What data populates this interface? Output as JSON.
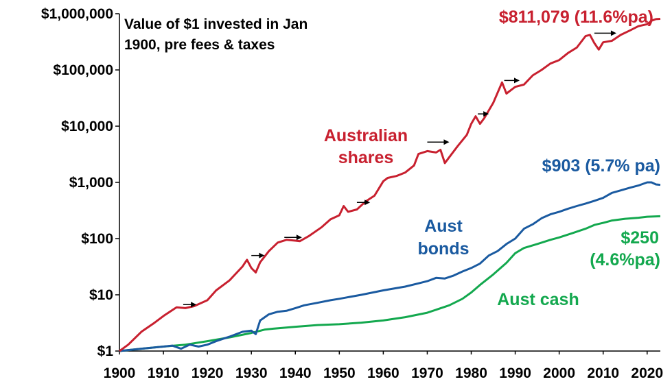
{
  "chart_data": {
    "type": "line",
    "title_lines": [
      "Value of $1 invested in Jan",
      "1900, pre fees & taxes"
    ],
    "y_scale": "log",
    "ylim": [
      1,
      1000000
    ],
    "xlim": [
      1900,
      2023
    ],
    "x_ticks": [
      1900,
      1910,
      1920,
      1930,
      1940,
      1950,
      1960,
      1970,
      1980,
      1990,
      2000,
      2010,
      2020
    ],
    "x_tick_labels": [
      "1900",
      "1910",
      "1920",
      "1930",
      "1940",
      "1950",
      "1960",
      "1970",
      "1980",
      "1990",
      "2000",
      "2010",
      "2020"
    ],
    "y_ticks": [
      1,
      10,
      100,
      1000,
      10000,
      100000,
      1000000
    ],
    "y_tick_labels": [
      "$1",
      "$10",
      "$100",
      "$1,000",
      "$10,000",
      "$100,000",
      "$1,000,000"
    ],
    "grid": false,
    "series": [
      {
        "name_lines": [
          "Australian",
          "shares"
        ],
        "color": "#c8202f",
        "end_label_lines": [
          "$811,079 (11.6%pa)"
        ],
        "points": [
          [
            1900,
            1
          ],
          [
            1902,
            1.3
          ],
          [
            1905,
            2.2
          ],
          [
            1908,
            3.2
          ],
          [
            1910,
            4.2
          ],
          [
            1913,
            6
          ],
          [
            1915,
            5.8
          ],
          [
            1917,
            6.3
          ],
          [
            1920,
            8
          ],
          [
            1922,
            12
          ],
          [
            1925,
            18
          ],
          [
            1928,
            32
          ],
          [
            1929,
            42
          ],
          [
            1930,
            30
          ],
          [
            1931,
            25
          ],
          [
            1932,
            38
          ],
          [
            1934,
            60
          ],
          [
            1936,
            85
          ],
          [
            1938,
            95
          ],
          [
            1940,
            92
          ],
          [
            1941,
            90
          ],
          [
            1943,
            110
          ],
          [
            1946,
            160
          ],
          [
            1948,
            220
          ],
          [
            1950,
            260
          ],
          [
            1951,
            380
          ],
          [
            1952,
            300
          ],
          [
            1954,
            330
          ],
          [
            1956,
            460
          ],
          [
            1958,
            580
          ],
          [
            1960,
            1050
          ],
          [
            1961,
            1200
          ],
          [
            1963,
            1300
          ],
          [
            1965,
            1500
          ],
          [
            1967,
            2000
          ],
          [
            1968,
            3200
          ],
          [
            1970,
            3600
          ],
          [
            1972,
            3400
          ],
          [
            1973,
            3800
          ],
          [
            1974,
            2200
          ],
          [
            1975,
            2800
          ],
          [
            1977,
            4500
          ],
          [
            1979,
            7000
          ],
          [
            1980,
            11000
          ],
          [
            1981,
            15000
          ],
          [
            1982,
            11000
          ],
          [
            1983,
            14000
          ],
          [
            1985,
            26000
          ],
          [
            1987,
            60000
          ],
          [
            1988,
            38000
          ],
          [
            1990,
            50000
          ],
          [
            1992,
            55000
          ],
          [
            1994,
            80000
          ],
          [
            1996,
            100000
          ],
          [
            1998,
            130000
          ],
          [
            2000,
            150000
          ],
          [
            2002,
            200000
          ],
          [
            2004,
            250000
          ],
          [
            2006,
            400000
          ],
          [
            2007,
            420000
          ],
          [
            2008,
            300000
          ],
          [
            2009,
            230000
          ],
          [
            2010,
            310000
          ],
          [
            2012,
            330000
          ],
          [
            2014,
            420000
          ],
          [
            2016,
            500000
          ],
          [
            2018,
            600000
          ],
          [
            2020,
            650000
          ],
          [
            2021,
            750000
          ],
          [
            2022,
            800000
          ],
          [
            2023,
            811079
          ]
        ]
      },
      {
        "name_lines": [
          "Aust",
          "bonds"
        ],
        "color": "#1a5aa0",
        "end_label_lines": [
          "$903 (5.7% pa)"
        ],
        "points": [
          [
            1900,
            1
          ],
          [
            1905,
            1.1
          ],
          [
            1910,
            1.2
          ],
          [
            1912,
            1.25
          ],
          [
            1914,
            1.1
          ],
          [
            1916,
            1.3
          ],
          [
            1918,
            1.2
          ],
          [
            1920,
            1.3
          ],
          [
            1922,
            1.5
          ],
          [
            1925,
            1.8
          ],
          [
            1928,
            2.2
          ],
          [
            1930,
            2.3
          ],
          [
            1931,
            2.0
          ],
          [
            1932,
            3.5
          ],
          [
            1934,
            4.5
          ],
          [
            1936,
            5
          ],
          [
            1938,
            5.2
          ],
          [
            1940,
            5.8
          ],
          [
            1942,
            6.5
          ],
          [
            1945,
            7.2
          ],
          [
            1948,
            8
          ],
          [
            1950,
            8.5
          ],
          [
            1955,
            10
          ],
          [
            1960,
            12
          ],
          [
            1965,
            14
          ],
          [
            1968,
            16
          ],
          [
            1970,
            17.5
          ],
          [
            1972,
            20
          ],
          [
            1974,
            19.5
          ],
          [
            1976,
            22
          ],
          [
            1978,
            26
          ],
          [
            1980,
            30
          ],
          [
            1982,
            36
          ],
          [
            1984,
            50
          ],
          [
            1986,
            60
          ],
          [
            1988,
            80
          ],
          [
            1990,
            100
          ],
          [
            1992,
            150
          ],
          [
            1994,
            180
          ],
          [
            1996,
            230
          ],
          [
            1998,
            270
          ],
          [
            2000,
            300
          ],
          [
            2002,
            340
          ],
          [
            2004,
            380
          ],
          [
            2006,
            420
          ],
          [
            2008,
            470
          ],
          [
            2010,
            530
          ],
          [
            2012,
            650
          ],
          [
            2014,
            720
          ],
          [
            2016,
            800
          ],
          [
            2018,
            880
          ],
          [
            2020,
            1000
          ],
          [
            2021,
            1000
          ],
          [
            2022,
            920
          ],
          [
            2023,
            903
          ]
        ]
      },
      {
        "name_lines": [
          "Aust cash"
        ],
        "color": "#13a84e",
        "end_label_lines": [
          "$250",
          "(4.6%pa)"
        ],
        "points": [
          [
            1900,
            1
          ],
          [
            1905,
            1.1
          ],
          [
            1910,
            1.2
          ],
          [
            1915,
            1.3
          ],
          [
            1920,
            1.5
          ],
          [
            1925,
            1.75
          ],
          [
            1930,
            2.1
          ],
          [
            1933,
            2.4
          ],
          [
            1935,
            2.5
          ],
          [
            1940,
            2.7
          ],
          [
            1945,
            2.9
          ],
          [
            1950,
            3.0
          ],
          [
            1955,
            3.2
          ],
          [
            1960,
            3.5
          ],
          [
            1965,
            4.0
          ],
          [
            1970,
            4.8
          ],
          [
            1975,
            6.5
          ],
          [
            1978,
            8.5
          ],
          [
            1980,
            11
          ],
          [
            1982,
            15
          ],
          [
            1985,
            23
          ],
          [
            1988,
            37
          ],
          [
            1990,
            55
          ],
          [
            1992,
            68
          ],
          [
            1995,
            80
          ],
          [
            1998,
            95
          ],
          [
            2000,
            105
          ],
          [
            2003,
            125
          ],
          [
            2006,
            150
          ],
          [
            2008,
            175
          ],
          [
            2010,
            190
          ],
          [
            2012,
            210
          ],
          [
            2015,
            225
          ],
          [
            2018,
            235
          ],
          [
            2020,
            245
          ],
          [
            2023,
            250
          ]
        ]
      }
    ],
    "arrow_annotations": [
      [
        1914.5,
        6.7,
        1917.5,
        6.7
      ],
      [
        1930,
        50,
        1933,
        50
      ],
      [
        1937.5,
        105,
        1941.5,
        105
      ],
      [
        1954,
        440,
        1957,
        440
      ],
      [
        1970,
        5200,
        1975,
        5200
      ],
      [
        1981.5,
        16500,
        1984,
        16500
      ],
      [
        1987.5,
        65000,
        1991,
        65000
      ],
      [
        2008,
        450000,
        2013,
        450000
      ]
    ]
  }
}
